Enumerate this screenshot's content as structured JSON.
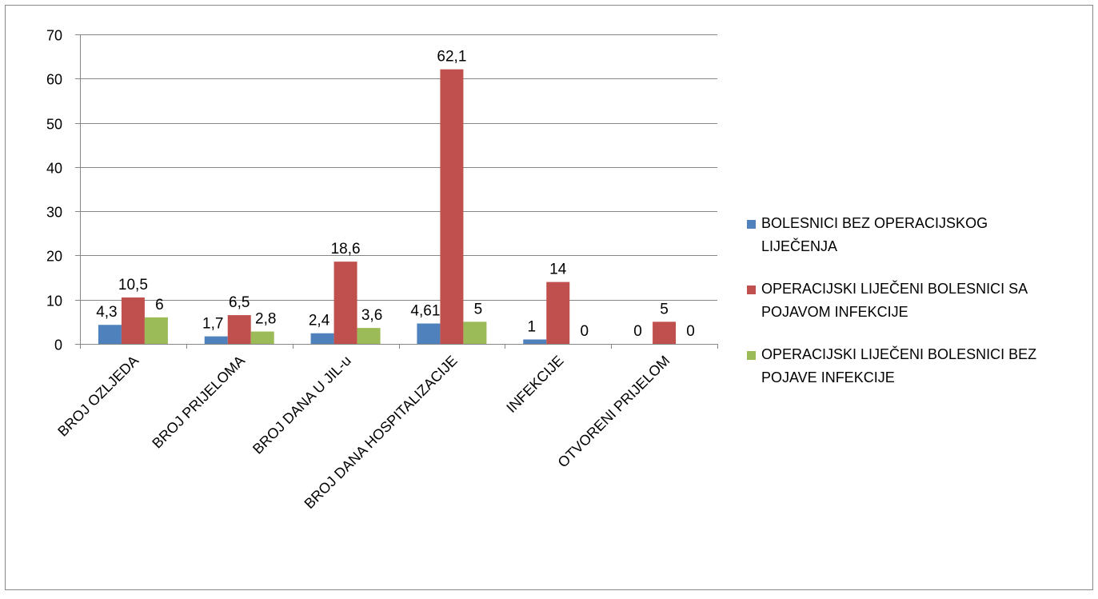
{
  "chart_data": {
    "type": "bar",
    "title": "",
    "xlabel": "",
    "ylabel": "",
    "ylim": [
      0,
      70
    ],
    "yticks": [
      0,
      10,
      20,
      30,
      40,
      50,
      60,
      70
    ],
    "grid": true,
    "legend_position": "right",
    "categories": [
      "BROJ OZLJEDA",
      "BROJ PRIJELOMA",
      "BROJ DANA U JIL-u",
      "BROJ DANA  HOSPITALIZACIJE",
      "INFEKCIJE",
      "OTVORENI PRIJELOM"
    ],
    "series": [
      {
        "name": "BOLESNICI BEZ OPERACIJSKOG LIJEČENJA",
        "legend_lines": [
          "BOLESNICI BEZ OPERACIJSKOG",
          "LIJEČENJA"
        ],
        "color": "#4f81bd",
        "values": [
          4.3,
          1.7,
          2.4,
          4.61,
          1,
          0
        ],
        "labels": [
          "4,3",
          "1,7",
          "2,4",
          "4,61",
          "1",
          "0"
        ]
      },
      {
        "name": "OPERACIJSKI LIJEČENI BOLESNICI SA POJAVOM INFEKCIJE",
        "legend_lines": [
          "OPERACIJSKI LIJEČENI BOLESNICI SA",
          "POJAVOM INFEKCIJE"
        ],
        "color": "#c0504d",
        "values": [
          10.5,
          6.5,
          18.6,
          62.1,
          14,
          5
        ],
        "labels": [
          "10,5",
          "6,5",
          "18,6",
          "62,1",
          "14",
          "5"
        ]
      },
      {
        "name": "OPERACIJSKI LIJEČENI BOLESNICI BEZ POJAVE INFEKCIJE",
        "legend_lines": [
          "OPERACIJSKI LIJEČENI BOLESNICI BEZ",
          "POJAVE INFEKCIJE"
        ],
        "color": "#9bbb59",
        "values": [
          6,
          2.8,
          3.6,
          5,
          0,
          0
        ],
        "labels": [
          "6",
          "2,8",
          "3,6",
          "5",
          "0",
          "0"
        ]
      }
    ]
  }
}
